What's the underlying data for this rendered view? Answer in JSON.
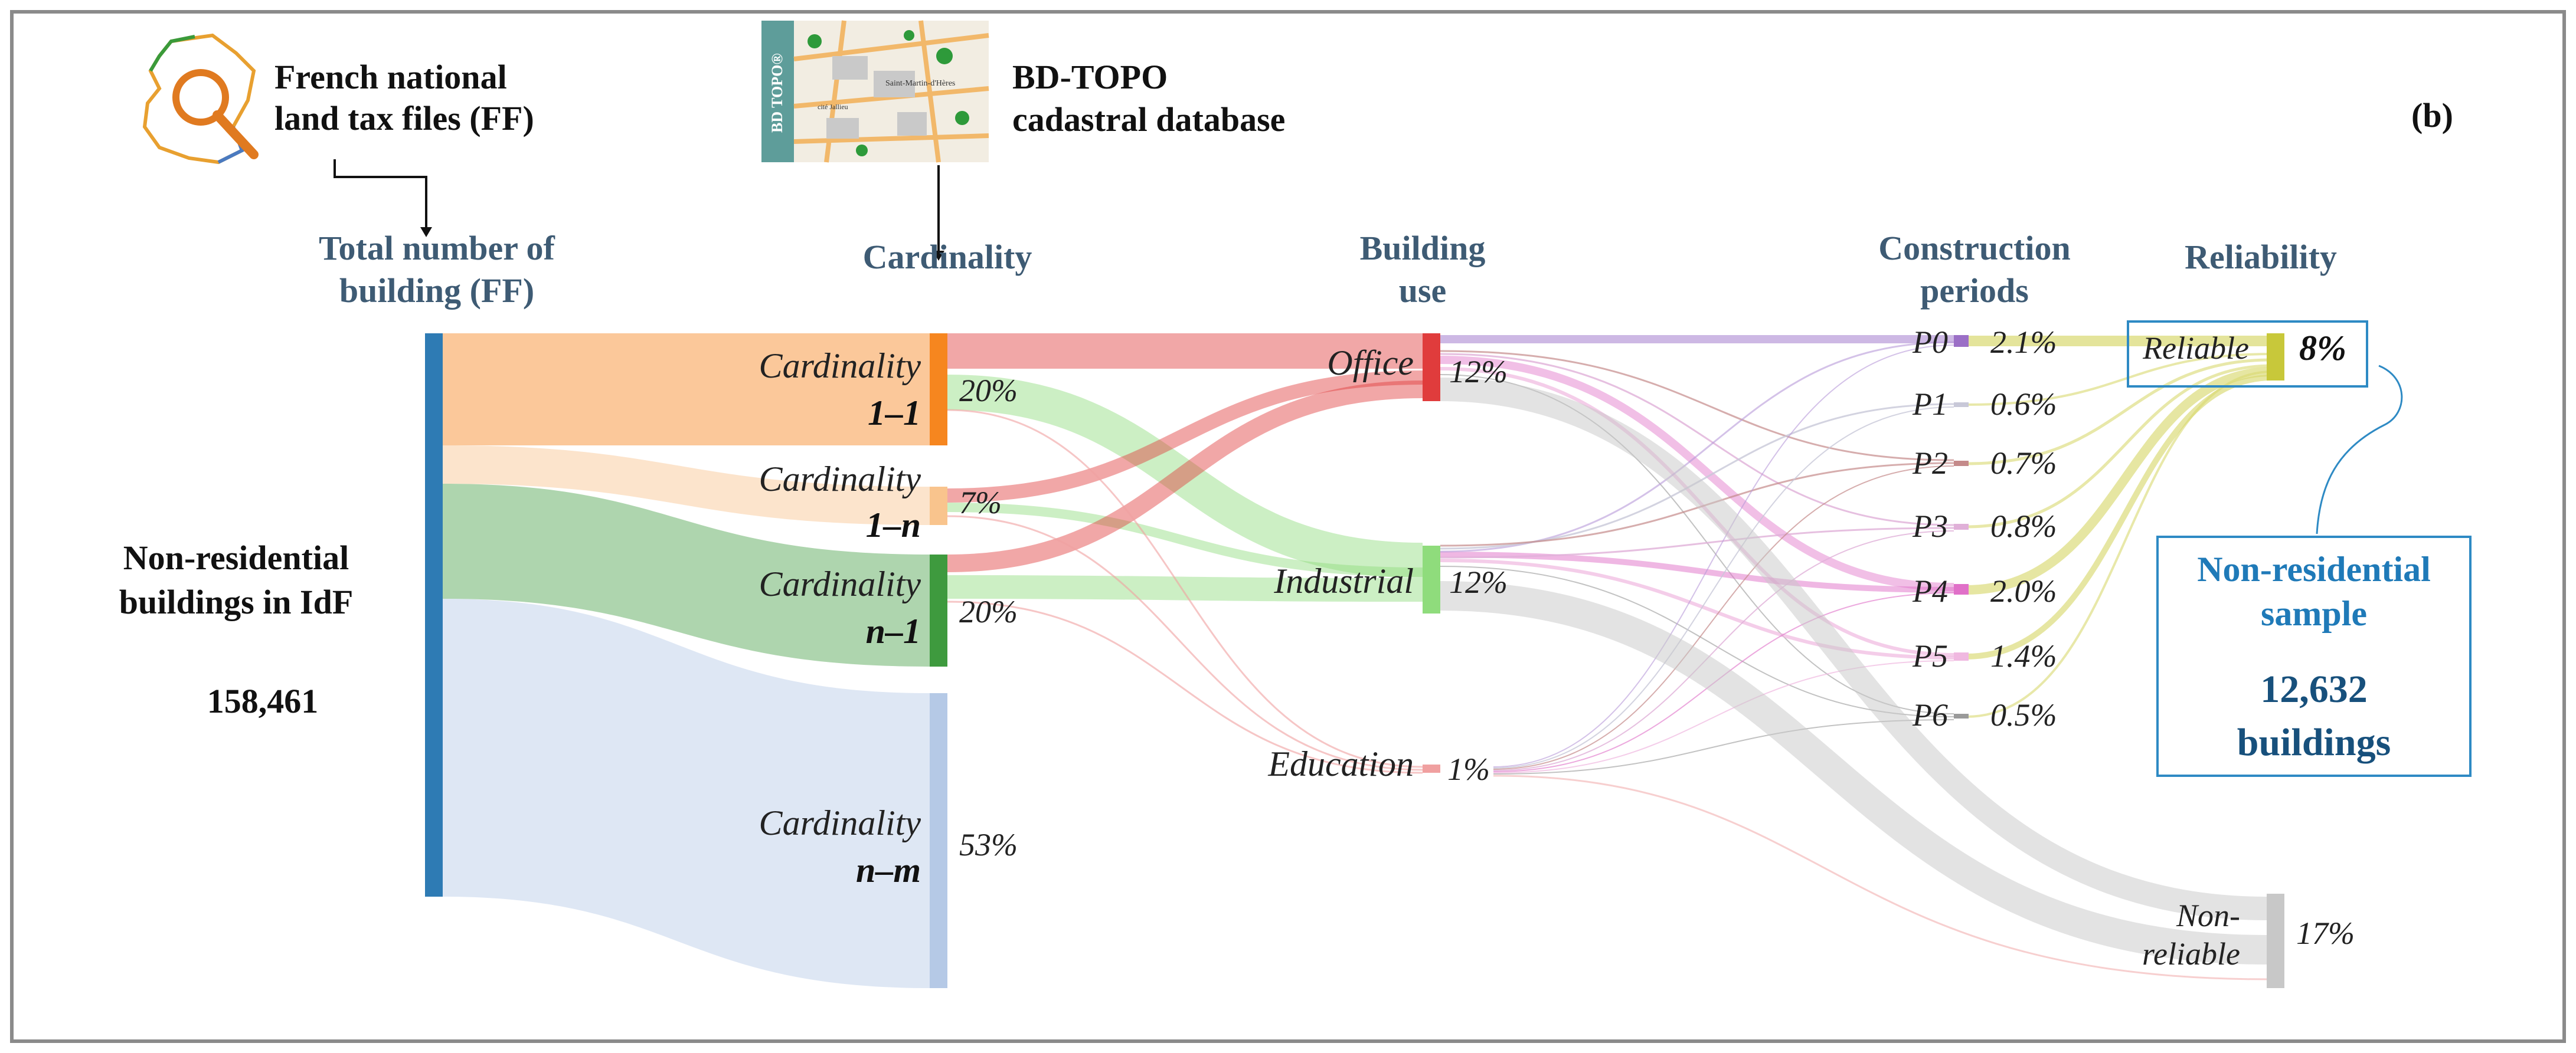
{
  "panel_label": "(b)",
  "sources": {
    "ff_line1": "French national",
    "ff_line2": "land tax files (FF)",
    "bdtopo_line1": "BD-TOPO",
    "bdtopo_line2": "cadastral database",
    "bdtopo_logo_text": "BD TOPO®",
    "bdtopo_map_label1": "Saint-Martin-d'Hères",
    "bdtopo_map_label2": "cité Jallieu"
  },
  "headers": {
    "total_line1": "Total number of",
    "total_line2": "building (FF)",
    "cardinality": "Cardinality",
    "use_line1": "Building",
    "use_line2": "use",
    "periods_line1": "Construction",
    "periods_line2": "periods",
    "reliability": "Reliability"
  },
  "source_node": {
    "line1": "Non-residential",
    "line2": "buildings in IdF",
    "value": "158,461"
  },
  "cardinality_nodes": [
    {
      "line1": "Cardinality",
      "line2": "1–1",
      "pct": "20%",
      "color": "#f6861f"
    },
    {
      "line1": "Cardinality",
      "line2": "1–n",
      "pct": "7%",
      "color": "#f9c48d"
    },
    {
      "line1": "Cardinality",
      "line2": "n–1",
      "pct": "20%",
      "color": "#3e9a3e"
    },
    {
      "line1": "Cardinality",
      "line2": "n–m",
      "pct": "53%",
      "color": "#b5c9e6"
    }
  ],
  "use_nodes": [
    {
      "label": "Office",
      "pct": "12%",
      "color": "#e03c3c"
    },
    {
      "label": "Industrial",
      "pct": "12%",
      "color": "#8fdc7c"
    },
    {
      "label": "Education",
      "pct": "1%",
      "color": "#f0a0a0"
    }
  ],
  "periods": [
    {
      "label": "P0",
      "pct": "2.1%",
      "color": "#9b6fc6"
    },
    {
      "label": "P1",
      "pct": "0.6%",
      "color": "#c8c8d8"
    },
    {
      "label": "P2",
      "pct": "0.7%",
      "color": "#c48a8a"
    },
    {
      "label": "P3",
      "pct": "0.8%",
      "color": "#e0b0d8"
    },
    {
      "label": "P4",
      "pct": "2.0%",
      "color": "#e070c8"
    },
    {
      "label": "P5",
      "pct": "1.4%",
      "color": "#f0b8e0"
    },
    {
      "label": "P6",
      "pct": "0.5%",
      "color": "#9a9a9a"
    }
  ],
  "reliability_nodes": [
    {
      "label": "Reliable",
      "pct": "8%",
      "color": "#c8c83a"
    },
    {
      "label_line1": "Non-",
      "label_line2": "reliable",
      "pct": "17%",
      "color": "#c8c8c8"
    }
  ],
  "sample_box": {
    "line1": "Non-residential",
    "line2": "sample",
    "value": "12,632",
    "unit": "buildings"
  }
}
